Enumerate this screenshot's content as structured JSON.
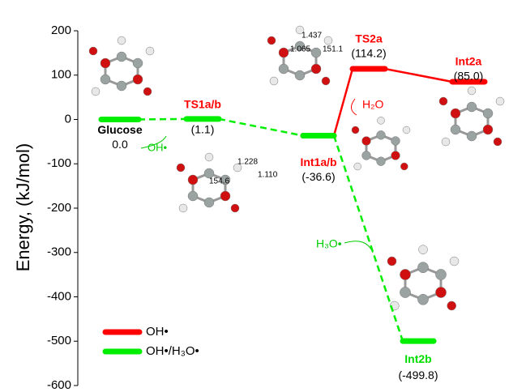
{
  "chart_data": {
    "type": "energy-profile",
    "y_label": "Energy, (kJ/mol)",
    "ylim": [
      -600,
      200
    ],
    "yticks": [
      200,
      100,
      0,
      -100,
      -200,
      -300,
      -400,
      -500,
      -600
    ],
    "categories": [
      "Glucose",
      "TS1a/b",
      "Int1a/b",
      "TS2a",
      "Int2a",
      "Int2b"
    ],
    "label_colors": [
      "#000000",
      "#ff0000",
      "#ff0000",
      "#ff0000",
      "#ff0000",
      "#00dd00"
    ],
    "value_labels": [
      "0.0",
      "(1.1)",
      "(-36.6)",
      "(114.2)",
      "(85.0)",
      "(-499.8)"
    ],
    "series": [
      {
        "name": "OH•",
        "color": "#ff0000",
        "dashed": false,
        "values": [
          null,
          null,
          -36.6,
          114.2,
          85.0,
          null
        ]
      },
      {
        "name": "OH•/H₃O•",
        "color": "#00ee00",
        "dashed": true,
        "values": [
          0.0,
          1.1,
          -36.6,
          null,
          null,
          -499.8
        ]
      }
    ],
    "legend": "lower left",
    "annotations": [
      {
        "text": "OH•",
        "color": "#00cc00"
      },
      {
        "text": "H₂O",
        "color": "#ff0000"
      },
      {
        "text": "H₃O•",
        "color": "#00cc00"
      },
      {
        "text": "1.437",
        "color": "#000000"
      },
      {
        "text": "1.065",
        "color": "#000000"
      },
      {
        "text": "151.1",
        "color": "#000000"
      },
      {
        "text": "1.228",
        "color": "#000000"
      },
      {
        "text": "1.110",
        "color": "#000000"
      },
      {
        "text": "154.6",
        "color": "#000000"
      }
    ]
  }
}
